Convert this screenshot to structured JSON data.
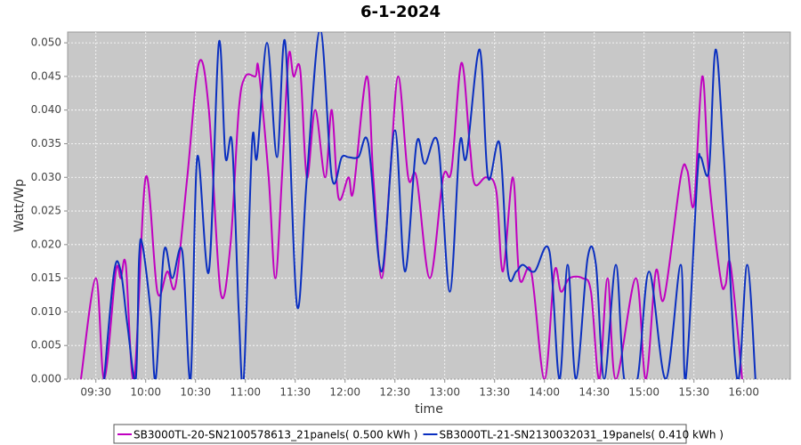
{
  "chart_data": {
    "type": "line",
    "title": "6-1-2024",
    "x_label": "time",
    "y_label": "Watt/Wp",
    "xlim": [
      "09:13",
      "16:28"
    ],
    "xticks": [
      "09:30",
      "10:00",
      "10:30",
      "11:00",
      "11:30",
      "12:00",
      "12:30",
      "13:00",
      "13:30",
      "14:00",
      "14:30",
      "15:00",
      "15:30",
      "16:00"
    ],
    "ylim": [
      0,
      0.0516
    ],
    "yticks": [
      {
        "value": 0,
        "label": "0.000"
      },
      {
        "value": 0.005,
        "label": "0.005"
      },
      {
        "value": 0.01,
        "label": "0.010"
      },
      {
        "value": 0.015,
        "label": "0.015"
      },
      {
        "value": 0.02,
        "label": "0.020"
      },
      {
        "value": 0.025,
        "label": "0.025"
      },
      {
        "value": 0.03,
        "label": "0.030"
      },
      {
        "value": 0.035,
        "label": "0.035"
      },
      {
        "value": 0.04,
        "label": "0.040"
      },
      {
        "value": 0.045,
        "label": "0.045"
      },
      {
        "value": 0.05,
        "label": "0.050"
      }
    ],
    "grid": true,
    "legend": "bottom",
    "series": [
      {
        "name": "SB3000TL-20-SN2100578613_21panels( 0.500 kWh )",
        "color": "#c000c0",
        "x": [
          "09:21",
          "09:30",
          "09:35",
          "09:42",
          "09:45",
          "09:48",
          "09:53",
          "10:00",
          "10:07",
          "10:13",
          "10:18",
          "10:25",
          "10:32",
          "10:38",
          "10:45",
          "10:51",
          "10:56",
          "11:00",
          "11:06",
          "11:08",
          "11:14",
          "11:18",
          "11:22",
          "11:26",
          "11:29",
          "11:33",
          "11:37",
          "11:42",
          "11:48",
          "11:52",
          "11:56",
          "12:02",
          "12:05",
          "12:13",
          "12:17",
          "12:22",
          "12:27",
          "12:32",
          "12:38",
          "12:43",
          "12:51",
          "12:59",
          "13:04",
          "13:10",
          "13:15",
          "13:18",
          "13:25",
          "13:31",
          "13:35",
          "13:41",
          "13:45",
          "13:52",
          "14:00",
          "14:06",
          "14:10",
          "14:15",
          "14:23",
          "14:28",
          "14:33",
          "14:38",
          "14:43",
          "14:55",
          "15:01",
          "15:07",
          "15:12",
          "15:22",
          "15:26",
          "15:30",
          "15:35",
          "15:39",
          "15:46",
          "15:49",
          "15:52",
          "15:59"
        ],
        "values": [
          0,
          0.015,
          0,
          0.016,
          0.015,
          0.017,
          0,
          0.03,
          0.013,
          0.016,
          0.014,
          0.03,
          0.047,
          0.04,
          0.013,
          0.02,
          0.04,
          0.045,
          0.045,
          0.046,
          0.03,
          0.015,
          0.03,
          0.048,
          0.045,
          0.046,
          0.03,
          0.04,
          0.03,
          0.04,
          0.027,
          0.03,
          0.028,
          0.045,
          0.03,
          0.015,
          0.03,
          0.045,
          0.03,
          0.03,
          0.015,
          0.03,
          0.031,
          0.047,
          0.035,
          0.029,
          0.03,
          0.028,
          0.016,
          0.03,
          0.015,
          0.016,
          0,
          0.016,
          0.013,
          0.015,
          0.015,
          0.013,
          0,
          0.015,
          0,
          0.015,
          0,
          0.016,
          0.012,
          0.03,
          0.031,
          0.026,
          0.045,
          0.03,
          0.015,
          0.014,
          0.017,
          0
        ]
      },
      {
        "name": "SB3000TL-21-SN2130032031_19panels( 0.410 kWh )",
        "color": "#0a2fc0",
        "x": [
          "09:35",
          "09:41",
          "09:45",
          "09:49",
          "09:54",
          "09:56",
          "09:58",
          "10:03",
          "10:06",
          "10:11",
          "10:16",
          "10:22",
          "10:27",
          "10:31",
          "10:38",
          "10:44",
          "10:48",
          "10:52",
          "10:56",
          "10:59",
          "11:04",
          "11:07",
          "11:13",
          "11:19",
          "11:24",
          "11:31",
          "11:37",
          "11:45",
          "11:52",
          "11:58",
          "12:02",
          "12:08",
          "12:14",
          "12:22",
          "12:30",
          "12:36",
          "12:43",
          "12:48",
          "12:56",
          "13:03",
          "13:09",
          "13:13",
          "13:21",
          "13:26",
          "13:33",
          "13:38",
          "13:43",
          "13:47",
          "13:54",
          "14:03",
          "14:09",
          "14:14",
          "14:19",
          "14:26",
          "14:31",
          "14:36",
          "14:43",
          "14:48",
          "14:56",
          "15:03",
          "15:13",
          "15:22",
          "15:25",
          "15:32",
          "15:34",
          "15:39",
          "15:43",
          "15:48",
          "15:56",
          "16:02",
          "16:07"
        ],
        "values": [
          0,
          0.016,
          0.016,
          0.008,
          0,
          0.018,
          0.02,
          0.01,
          0,
          0.019,
          0.015,
          0.019,
          0,
          0.033,
          0.016,
          0.05,
          0.033,
          0.035,
          0.01,
          0,
          0.035,
          0.033,
          0.05,
          0.033,
          0.05,
          0.011,
          0.03,
          0.052,
          0.03,
          0.033,
          0.033,
          0.033,
          0.035,
          0.016,
          0.037,
          0.016,
          0.035,
          0.032,
          0.035,
          0.013,
          0.035,
          0.033,
          0.049,
          0.03,
          0.035,
          0.016,
          0.016,
          0.017,
          0.016,
          0.019,
          0,
          0.017,
          0,
          0.018,
          0.017,
          0,
          0.017,
          0,
          0,
          0.016,
          0,
          0.017,
          0,
          0.03,
          0.033,
          0.031,
          0.049,
          0.033,
          0,
          0.017,
          0
        ]
      }
    ]
  }
}
